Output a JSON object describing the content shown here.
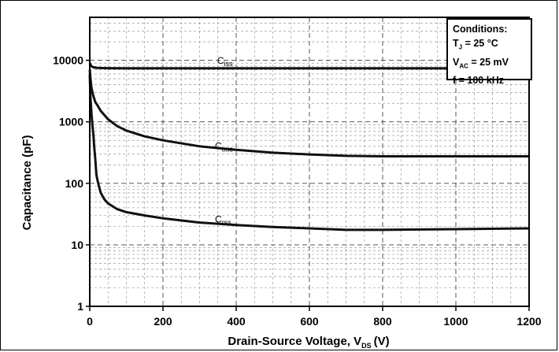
{
  "chart_data": {
    "type": "line",
    "title": "",
    "xlabel": "Drain-Source Voltage, V",
    "xlabel_sub": "DS",
    "xlabel_unit": "(V)",
    "ylabel": "Capacitance (pF)",
    "xlim": [
      0,
      1200
    ],
    "ylim": [
      1,
      50000
    ],
    "y_scale": "log",
    "grid": true,
    "x_ticks": [
      0,
      200,
      400,
      600,
      800,
      1000,
      1200
    ],
    "y_ticks": [
      1,
      10,
      100,
      1000,
      10000
    ],
    "series": [
      {
        "name": "C",
        "name_sub": "iss",
        "x": [
          0,
          2,
          5,
          10,
          15,
          20,
          50,
          100,
          200,
          400,
          600,
          800,
          1000,
          1200
        ],
        "y": [
          9000,
          8500,
          8000,
          7700,
          7600,
          7500,
          7450,
          7400,
          7400,
          7400,
          7400,
          7400,
          7400,
          7400
        ]
      },
      {
        "name": "C",
        "name_sub": "oss",
        "x": [
          0,
          2,
          5,
          10,
          15,
          20,
          30,
          50,
          75,
          100,
          150,
          200,
          300,
          400,
          500,
          600,
          700,
          800,
          1000,
          1200
        ],
        "y": [
          7000,
          5000,
          3500,
          2600,
          2100,
          1900,
          1500,
          1100,
          850,
          720,
          580,
          500,
          400,
          350,
          315,
          295,
          280,
          275,
          275,
          275
        ]
      },
      {
        "name": "C",
        "name_sub": "rss",
        "x": [
          0,
          2,
          5,
          8,
          10,
          12,
          15,
          18,
          20,
          25,
          30,
          40,
          50,
          75,
          100,
          150,
          200,
          300,
          400,
          500,
          600,
          700,
          800,
          1000,
          1200
        ],
        "y": [
          6000,
          2500,
          1300,
          800,
          600,
          400,
          250,
          140,
          120,
          90,
          70,
          55,
          47,
          38,
          34,
          30,
          27,
          23,
          21,
          19.5,
          18.5,
          17.5,
          17.5,
          18,
          18.5
        ]
      }
    ],
    "annotation": {
      "title": "Conditions:",
      "line1_prefix": "T",
      "line1_sub": "J",
      "line1_rest": " = 25 °C",
      "line2_prefix": "V",
      "line2_sub": "AC",
      "line2_rest": " = 25 mV",
      "line3": "f = 100 kHz"
    }
  }
}
